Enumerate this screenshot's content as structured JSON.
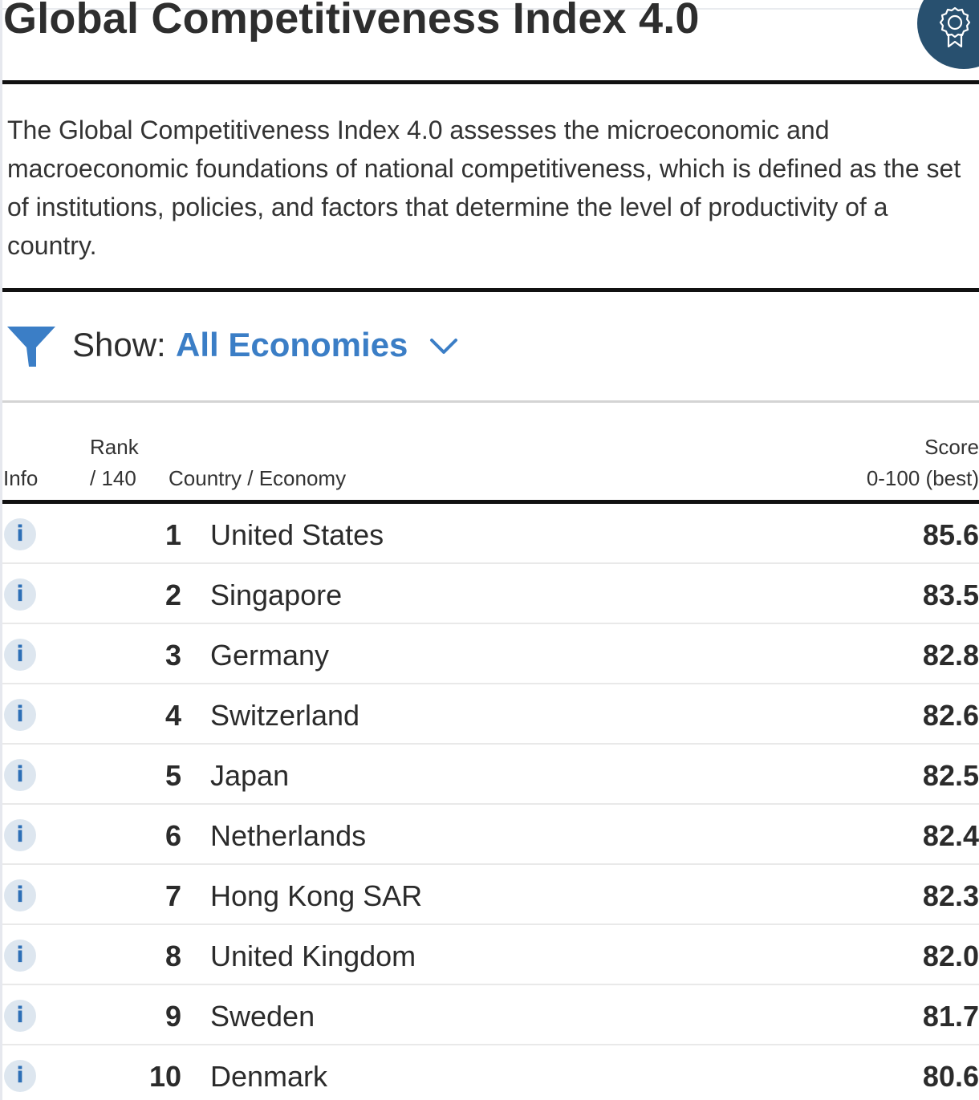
{
  "page": {
    "title": "Global Competitiveness Index 4.0",
    "badge_icon": "award-ribbon-icon",
    "description": "The Global Competitiveness Index 4.0 assesses the microeconomic and macroeconomic foundations of national competitiveness, which is defined as the set of institutions, policies, and factors that determine the level of productivity of a country."
  },
  "filter": {
    "icon": "filter-funnel-icon",
    "label": "Show:",
    "value": "All Economies",
    "dropdown_icon": "chevron-down-icon"
  },
  "table": {
    "headers": {
      "info": "Info",
      "rank_line1": "Rank",
      "rank_line2": "/ 140",
      "country": "Country / Economy",
      "score_line1": "Score",
      "score_line2": "0-100 (best)"
    },
    "info_glyph": "i",
    "rows": [
      {
        "rank": "1",
        "country": "United States",
        "score": "85.6"
      },
      {
        "rank": "2",
        "country": "Singapore",
        "score": "83.5"
      },
      {
        "rank": "3",
        "country": "Germany",
        "score": "82.8"
      },
      {
        "rank": "4",
        "country": "Switzerland",
        "score": "82.6"
      },
      {
        "rank": "5",
        "country": "Japan",
        "score": "82.5"
      },
      {
        "rank": "6",
        "country": "Netherlands",
        "score": "82.4"
      },
      {
        "rank": "7",
        "country": "Hong Kong SAR",
        "score": "82.3"
      },
      {
        "rank": "8",
        "country": "United Kingdom",
        "score": "82.0"
      },
      {
        "rank": "9",
        "country": "Sweden",
        "score": "81.7"
      },
      {
        "rank": "10",
        "country": "Denmark",
        "score": "80.6"
      }
    ]
  },
  "colors": {
    "accent": "#3b7ec6",
    "badge": "#28506f",
    "info_bg": "#dde6ef",
    "rule": "#111111"
  }
}
